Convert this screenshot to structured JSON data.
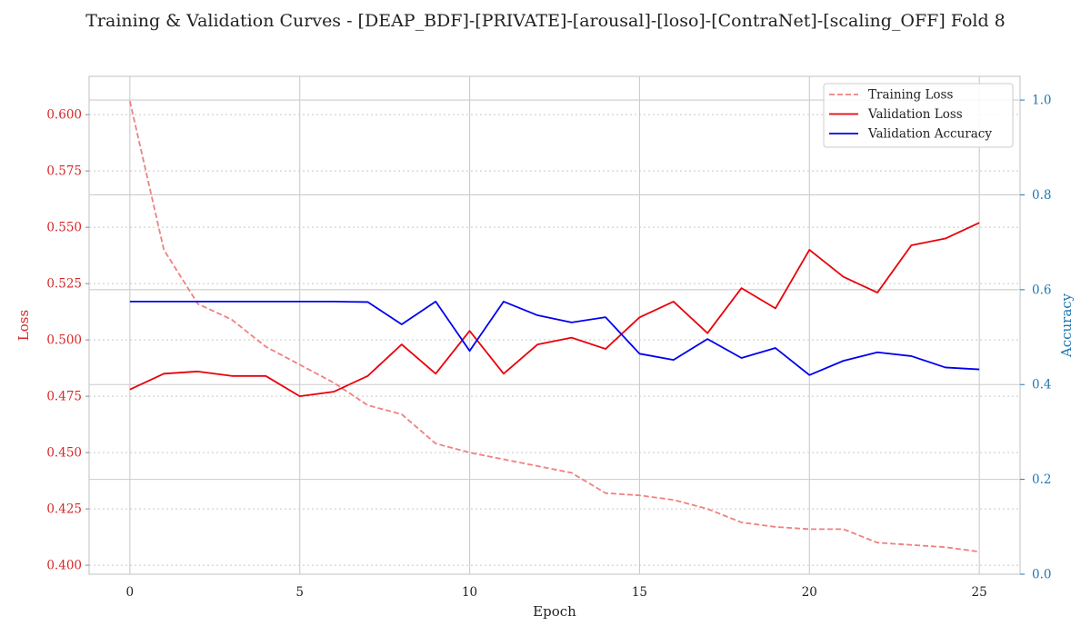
{
  "chart_data": {
    "type": "line",
    "title": "Training & Validation Curves - [DEAP_BDF]-[PRIVATE]-[arousal]-[loso]-[ContraNet]-[scaling_OFF] Fold 8",
    "xlabel": "Epoch",
    "ylabel_left": "Loss",
    "ylabel_right": "Accuracy",
    "xlim": [
      -1.2,
      26.2
    ],
    "ylim_left": [
      0.396,
      0.617
    ],
    "ylim_right": [
      0.0,
      1.05
    ],
    "x_ticks": [
      0,
      5,
      10,
      15,
      20,
      25
    ],
    "y_ticks_left": [
      0.4,
      0.425,
      0.45,
      0.475,
      0.5,
      0.525,
      0.55,
      0.575,
      0.6
    ],
    "y_tick_labels_left": [
      "0.400",
      "0.425",
      "0.450",
      "0.475",
      "0.500",
      "0.525",
      "0.550",
      "0.575",
      "0.600"
    ],
    "y_ticks_right": [
      0.0,
      0.2,
      0.4,
      0.6,
      0.8,
      1.0
    ],
    "y_tick_labels_right": [
      "0.0",
      "0.2",
      "0.4",
      "0.6",
      "0.8",
      "1.0"
    ],
    "grid": true,
    "legend_position": "top-right",
    "x": [
      0,
      1,
      2,
      3,
      4,
      5,
      6,
      7,
      8,
      9,
      10,
      11,
      12,
      13,
      14,
      15,
      16,
      17,
      18,
      19,
      20,
      21,
      22,
      23,
      24,
      25
    ],
    "series": [
      {
        "name": "Training Loss",
        "axis": "left",
        "color": "#f08080",
        "style": "dashed",
        "values": [
          0.606,
          0.54,
          0.516,
          0.509,
          0.497,
          0.489,
          0.481,
          0.471,
          0.467,
          0.454,
          0.45,
          0.447,
          0.444,
          0.441,
          0.432,
          0.431,
          0.429,
          0.425,
          0.419,
          0.417,
          0.416,
          0.416,
          0.41,
          0.409,
          0.408,
          0.406
        ]
      },
      {
        "name": "Validation Loss",
        "axis": "left",
        "color": "#e8000b",
        "style": "solid",
        "values": [
          0.478,
          0.485,
          0.486,
          0.484,
          0.484,
          0.475,
          0.477,
          0.484,
          0.498,
          0.485,
          0.504,
          0.485,
          0.498,
          0.501,
          0.496,
          0.51,
          0.517,
          0.503,
          0.523,
          0.514,
          0.54,
          0.528,
          0.521,
          0.542,
          0.545,
          0.552
        ]
      },
      {
        "name": "Validation Accuracy",
        "axis": "right",
        "color": "#0000ee",
        "style": "solid",
        "values": [
          0.575,
          0.575,
          0.575,
          0.575,
          0.575,
          0.575,
          0.575,
          0.574,
          0.527,
          0.575,
          0.471,
          0.575,
          0.546,
          0.531,
          0.542,
          0.465,
          0.452,
          0.496,
          0.456,
          0.477,
          0.42,
          0.45,
          0.468,
          0.46,
          0.436,
          0.432
        ]
      }
    ]
  }
}
